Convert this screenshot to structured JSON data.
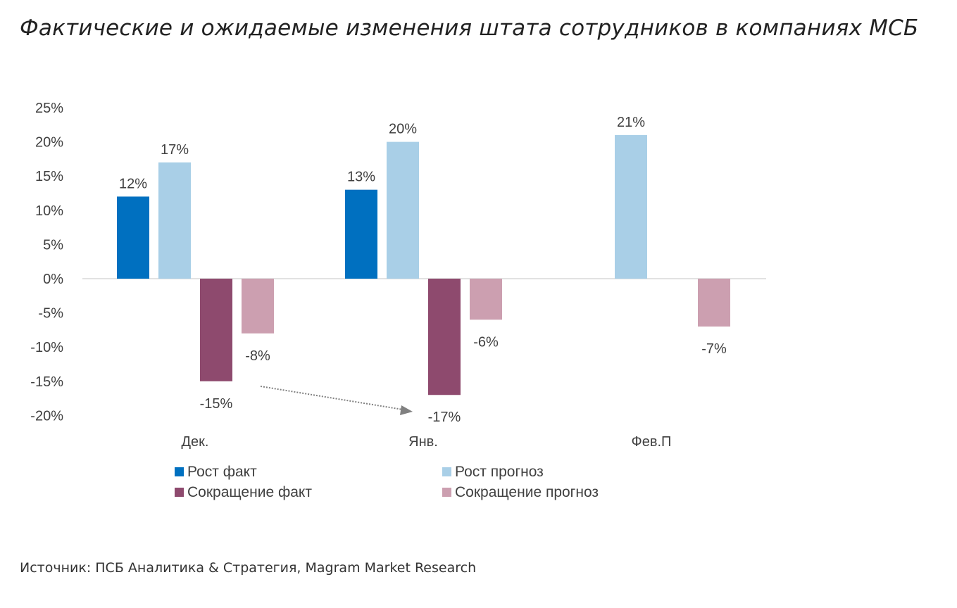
{
  "title": "Фактические и ожидаемые изменения штата сотрудников в компаниях МСБ",
  "source": "Источник: ПСБ Аналитика & Стратегия, Magram Market Research",
  "chart_data": {
    "type": "bar",
    "title": "Фактические и ожидаемые изменения штата сотрудников в компаниях МСБ",
    "categories": [
      "Дек.",
      "Янв.",
      "Фев.П"
    ],
    "series": [
      {
        "name": "Рост факт",
        "values": [
          12,
          13,
          null
        ],
        "color": "#0070c0"
      },
      {
        "name": "Рост прогноз",
        "values": [
          17,
          20,
          21
        ],
        "color": "#a9cfe7"
      },
      {
        "name": "Сокращение факт",
        "values": [
          -15,
          -17,
          null
        ],
        "color": "#8e4a6e"
      },
      {
        "name": "Сокращение прогноз",
        "values": [
          -8,
          -6,
          -7
        ],
        "color": "#cc9fb0"
      }
    ],
    "yticks": [
      "25%",
      "20%",
      "15%",
      "10%",
      "5%",
      "0%",
      "-5%",
      "-10%",
      "-15%",
      "-20%"
    ],
    "ylim": [
      -20,
      25
    ],
    "grid": false,
    "legend_position": "bottom",
    "annotation": "dotted arrow from Дек. Сокращение факт to Янв. Сокращение факт"
  }
}
